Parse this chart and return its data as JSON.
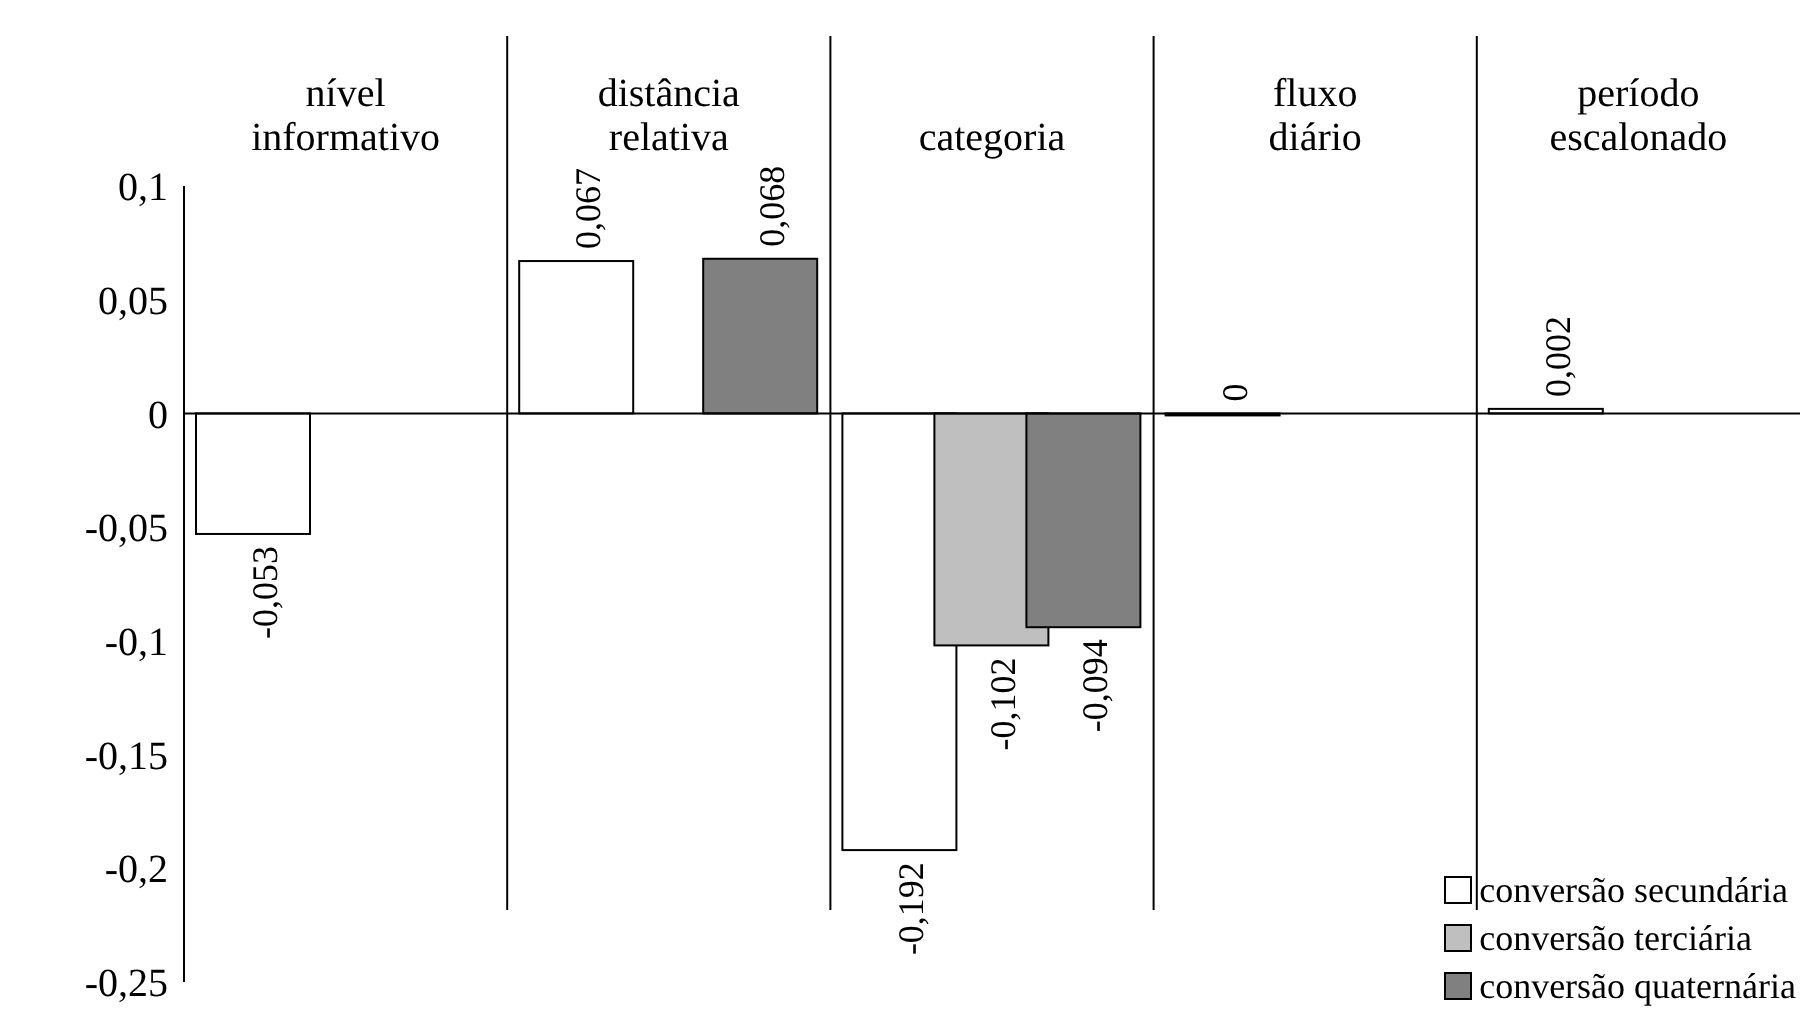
{
  "chart_data": {
    "type": "bar",
    "categories": [
      "nível informativo",
      "distância relativa",
      "categoria",
      "fluxo diário",
      "período escalonado"
    ],
    "series": [
      {
        "name": "conversão secundária",
        "color": "#ffffff",
        "values": [
          -0.053,
          0.067,
          -0.192,
          0,
          0.002
        ],
        "value_labels": [
          "-0,053",
          "0,067",
          "-0,192",
          "0",
          "0,002"
        ]
      },
      {
        "name": "conversão terciária",
        "color": "#bfbfbf",
        "values": [
          null,
          null,
          -0.102,
          null,
          null
        ],
        "value_labels": [
          null,
          null,
          "-0,102",
          null,
          null
        ]
      },
      {
        "name": "conversão quaternária",
        "color": "#808080",
        "values": [
          null,
          0.068,
          -0.094,
          null,
          null
        ],
        "value_labels": [
          null,
          "0,068",
          "-0,094",
          null,
          null
        ]
      }
    ],
    "ylim": [
      -0.25,
      0.1
    ],
    "yticks": [
      {
        "value": -0.25,
        "label": "-0,25"
      },
      {
        "value": -0.2,
        "label": "-0,2"
      },
      {
        "value": -0.15,
        "label": "-0,15"
      },
      {
        "value": -0.1,
        "label": "-0,1"
      },
      {
        "value": -0.05,
        "label": "-0,05"
      },
      {
        "value": 0,
        "label": "0"
      },
      {
        "value": 0.05,
        "label": "0,05"
      },
      {
        "value": 0.1,
        "label": "0,1"
      }
    ],
    "legend": "bottom right"
  }
}
